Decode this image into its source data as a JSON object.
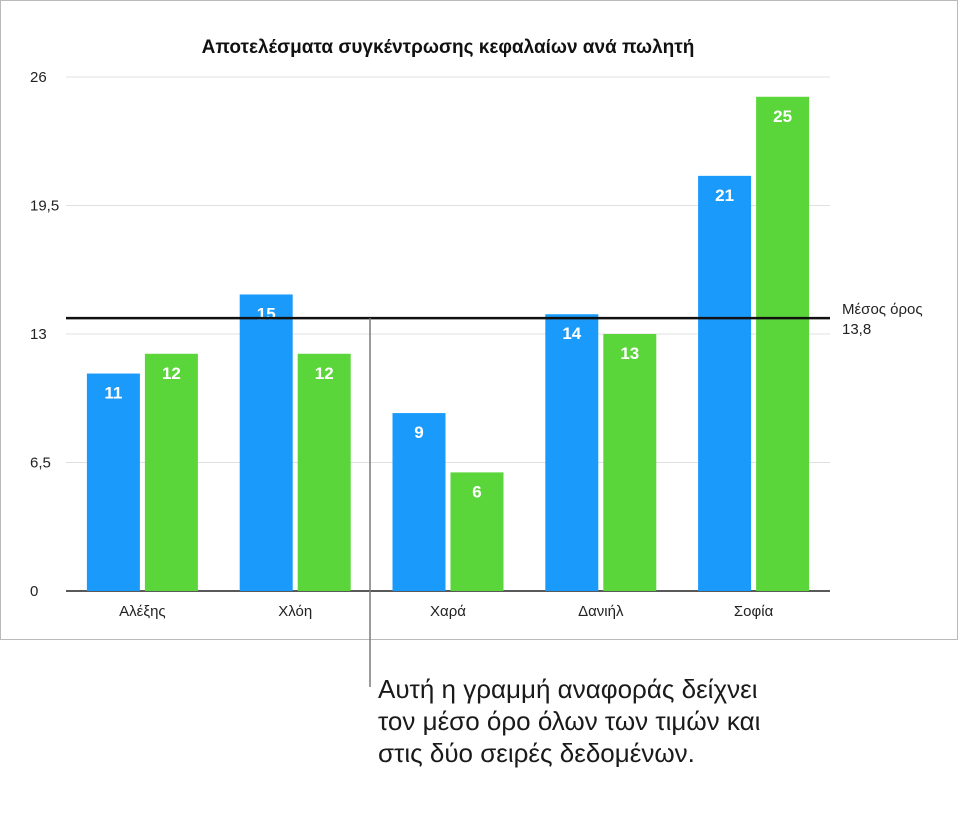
{
  "chart_data": {
    "type": "bar",
    "title": "Αποτελέσματα συγκέντρωσης κεφαλαίων ανά πωλητή",
    "categories": [
      "Αλέξης",
      "Χλόη",
      "Χαρά",
      "Δανιήλ",
      "Σοφία"
    ],
    "series": [
      {
        "values": [
          11,
          15,
          9,
          14,
          21
        ],
        "color": "#1a9bfc"
      },
      {
        "values": [
          12,
          12,
          6,
          13,
          25
        ],
        "color": "#5bd63a"
      }
    ],
    "ylim": [
      0,
      26
    ],
    "yticks": [
      "0",
      "6,5",
      "13",
      "19,5",
      "26"
    ],
    "ytick_values": [
      0,
      6.5,
      13,
      19.5,
      26
    ],
    "grid": true,
    "reference_line": {
      "label": "Μέσος όρος",
      "value": 13.8,
      "value_label": "13,8"
    }
  },
  "callout": {
    "text": "Αυτή η γραμμή αναφοράς δείχνει τον μέσο όρο όλων των τιμών και στις δύο σειρές δεδομένων."
  }
}
